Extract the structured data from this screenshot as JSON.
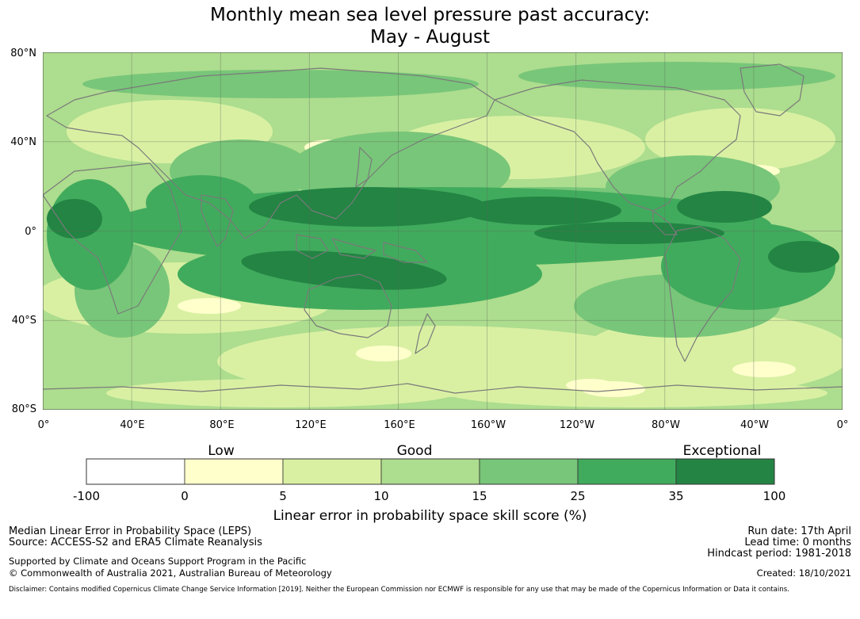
{
  "title": {
    "line1": "Monthly mean sea level pressure past accuracy:",
    "line2": "May - August"
  },
  "map": {
    "lat_labels": [
      "80°N",
      "40°N",
      "0°",
      "40°S",
      "80°S"
    ],
    "lon_labels": [
      "0°",
      "40°E",
      "80°E",
      "120°E",
      "160°E",
      "160°W",
      "120°W",
      "80°W",
      "40°W",
      "0°"
    ]
  },
  "colorbar": {
    "categories": [
      "Low",
      "Good",
      "Exceptional"
    ],
    "ticks": [
      "-100",
      "0",
      "5",
      "10",
      "15",
      "25",
      "35",
      "100"
    ],
    "colors": [
      "#ffffff",
      "#ffffcc",
      "#d9f0a3",
      "#addd8e",
      "#78c679",
      "#41ab5d",
      "#238443"
    ],
    "label": "Linear error in probability space skill score (%)"
  },
  "footer": {
    "left_line1": "Median Linear Error in Probability Space (LEPS)",
    "left_line2": "Source: ACCESS-S2 and ERA5 Climate Reanalysis",
    "left_line3": "Supported by Climate and Oceans Support Program in the Pacific",
    "left_line4": "© Commonwealth of Australia 2021, Australian Bureau of Meteorology",
    "right_line1": "Run date: 17th April",
    "right_line2": "Lead time: 0 months",
    "right_line3": "Hindcast period: 1981-2018",
    "right_line4": "Created: 18/10/2021",
    "disclaimer": "Disclaimer: Contains modified Copernicus Climate Change Service Information [2019]. Neither the European Commission nor ECMWF is responsible for any use that may be made of the Copernicus Information or Data it contains."
  }
}
